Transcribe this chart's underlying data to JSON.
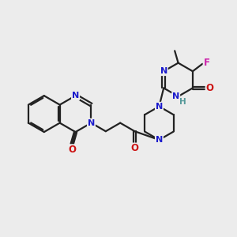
{
  "bg_color": "#ececec",
  "bond_color": "#222222",
  "N_color": "#1a1acc",
  "O_color": "#cc1111",
  "F_color": "#cc22aa",
  "H_color": "#559999",
  "line_width": 1.6,
  "figsize": [
    3.0,
    3.0
  ],
  "dpi": 100,
  "xlim": [
    0,
    10
  ],
  "ylim": [
    0,
    10
  ]
}
